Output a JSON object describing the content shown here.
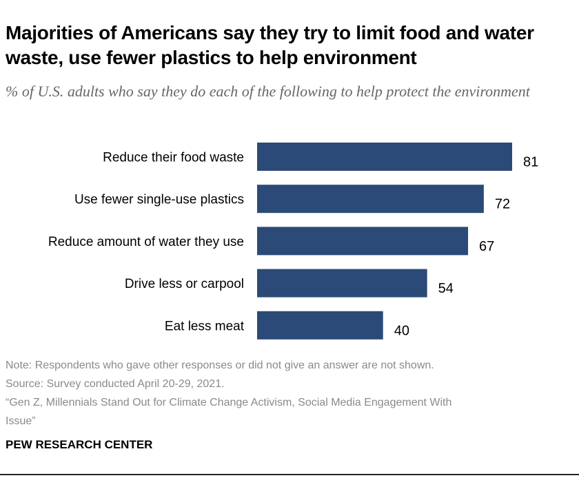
{
  "title": "Majorities of Americans say they try to limit food and water waste, use fewer plastics to help environment",
  "subtitle": "% of U.S. adults who say they do each of the following to help protect the environment",
  "chart_data": {
    "type": "bar",
    "orientation": "horizontal",
    "categories": [
      "Reduce their food waste",
      "Use fewer single-use plastics",
      "Reduce amount of water they use",
      "Drive less or carpool",
      "Eat less meat"
    ],
    "values": [
      81,
      72,
      67,
      54,
      40
    ],
    "xlim": [
      0,
      100
    ],
    "grid": false,
    "data_labels": true,
    "bar_color": "#2b4a77"
  },
  "notes": [
    "Note: Respondents who gave other responses or did not give an answer are not shown.",
    "Source: Survey conducted April 20-29, 2021.",
    "“Gen Z, Millennials Stand Out for Climate Change Activism, Social Media Engagement With",
    "Issue”"
  ],
  "brand": "PEW RESEARCH CENTER"
}
